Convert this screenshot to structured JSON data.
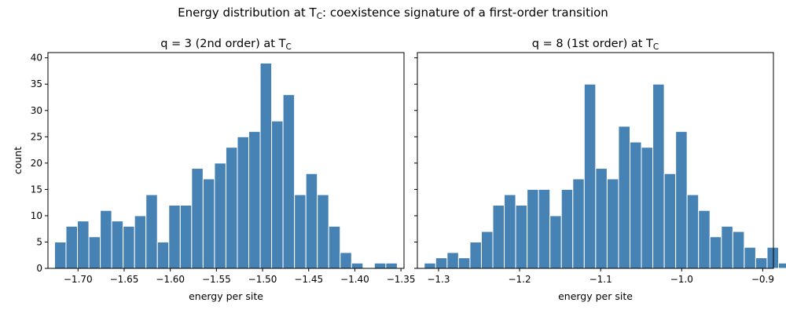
{
  "figure": {
    "suptitle": "Energy distribution at T",
    "suptitle_sub": "C",
    "suptitle_rest": ": coexistence signature of a first-order transition"
  },
  "chart_data": [
    {
      "type": "bar",
      "title": "q = 3 (2nd order) at T",
      "title_sub": "C",
      "xlabel": "energy per site",
      "ylabel": "count",
      "bar_color": "#4682b4",
      "xlim": [
        -1.7326,
        -1.3467
      ],
      "ylim": [
        0,
        41
      ],
      "xticks": [
        -1.7,
        -1.65,
        -1.6,
        -1.55,
        -1.5,
        -1.45,
        -1.4,
        -1.35
      ],
      "xtick_labels": [
        "−1.70",
        "−1.65",
        "−1.60",
        "−1.55",
        "−1.50",
        "−1.45",
        "−1.40",
        "−1.35"
      ],
      "yticks": [
        0,
        5,
        10,
        15,
        20,
        25,
        30,
        35,
        40
      ],
      "ytick_labels": [
        "0",
        "5",
        "10",
        "15",
        "20",
        "25",
        "30",
        "35",
        "40"
      ],
      "bin_start": -1.7254,
      "bin_width": 0.01238,
      "values": [
        5,
        8,
        9,
        6,
        11,
        9,
        8,
        10,
        14,
        5,
        12,
        12,
        19,
        17,
        20,
        23,
        25,
        26,
        39,
        28,
        33,
        14,
        18,
        14,
        8,
        3,
        1,
        0,
        1,
        1
      ]
    },
    {
      "type": "bar",
      "title": "q = 8 (1st order) at T",
      "title_sub": "C",
      "xlabel": "energy per site",
      "ylabel": "",
      "bar_color": "#4682b4",
      "xlim": [
        -1.3261,
        -0.8868
      ],
      "ylim": [
        0,
        41
      ],
      "xticks": [
        -1.3,
        -1.2,
        -1.1,
        -1.0,
        -0.9
      ],
      "xtick_labels": [
        "−1.3",
        "−1.2",
        "−1.1",
        "−1.0",
        "−0.9"
      ],
      "yticks": [
        0,
        5,
        10,
        15,
        20,
        25,
        30,
        35,
        40
      ],
      "ytick_labels": [],
      "bin_start": -1.3176,
      "bin_width": 0.0141,
      "values": [
        1,
        2,
        3,
        2,
        5,
        7,
        12,
        14,
        12,
        15,
        15,
        10,
        15,
        17,
        35,
        19,
        17,
        27,
        24,
        23,
        35,
        18,
        26,
        14,
        11,
        6,
        8,
        7,
        4,
        2,
        4,
        1
      ]
    }
  ]
}
